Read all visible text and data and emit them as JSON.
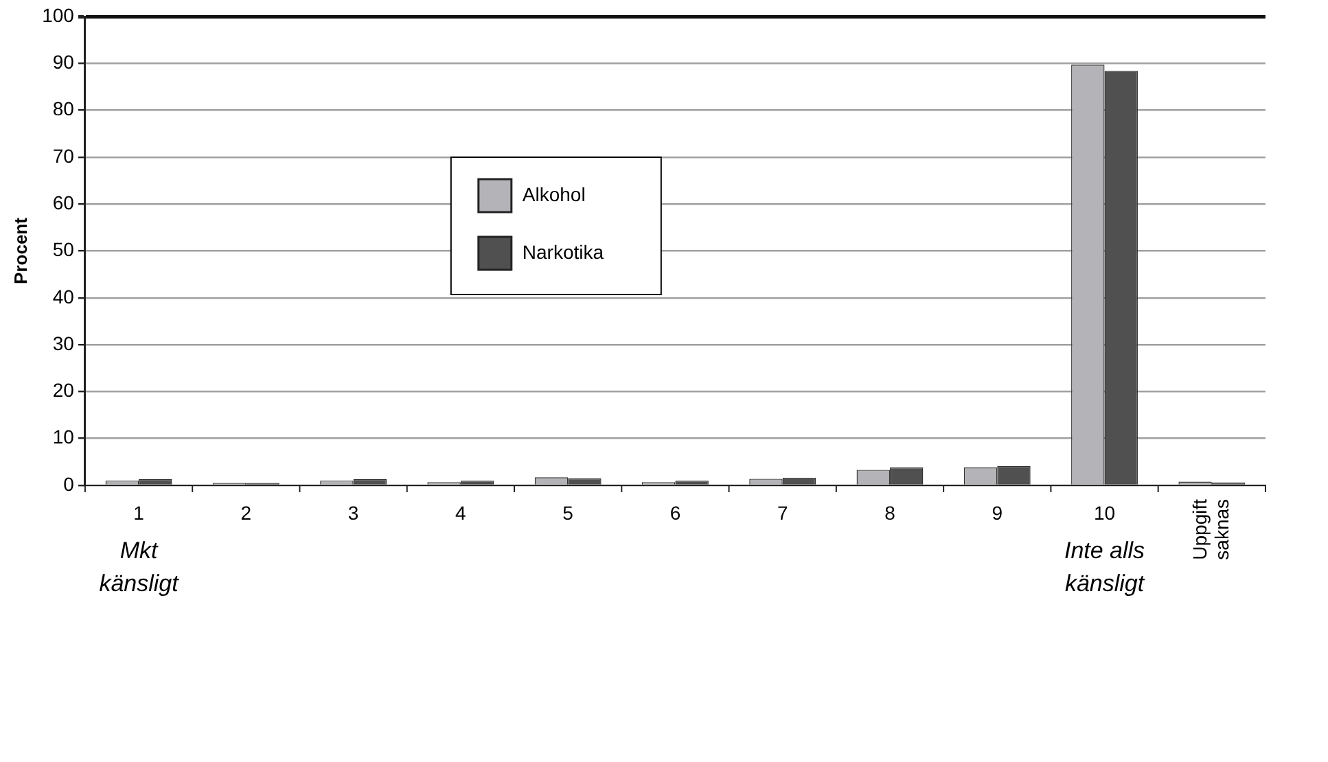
{
  "chart_data": {
    "type": "bar",
    "ylabel": "Procent",
    "categories": [
      "1",
      "2",
      "3",
      "4",
      "5",
      "6",
      "7",
      "8",
      "9",
      "10",
      "Uppgift saknas"
    ],
    "series": [
      {
        "name": "Alkohol",
        "color": "#b4b4b8",
        "values": [
          1.0,
          0.5,
          1.0,
          0.7,
          1.7,
          0.7,
          1.4,
          3.3,
          3.8,
          89.7,
          0.8
        ]
      },
      {
        "name": "Narkotika",
        "color": "#505050",
        "values": [
          1.3,
          0.5,
          1.3,
          1.0,
          1.5,
          1.0,
          1.6,
          3.8,
          4.1,
          88.4,
          0.6
        ]
      }
    ],
    "ylim": [
      0,
      100
    ],
    "yticks": [
      0,
      10,
      20,
      30,
      40,
      50,
      60,
      70,
      80,
      90,
      100
    ],
    "grid": "y",
    "legend": "center",
    "annotations": [
      "Mkt känsligt",
      "Inte alls känsligt"
    ]
  }
}
